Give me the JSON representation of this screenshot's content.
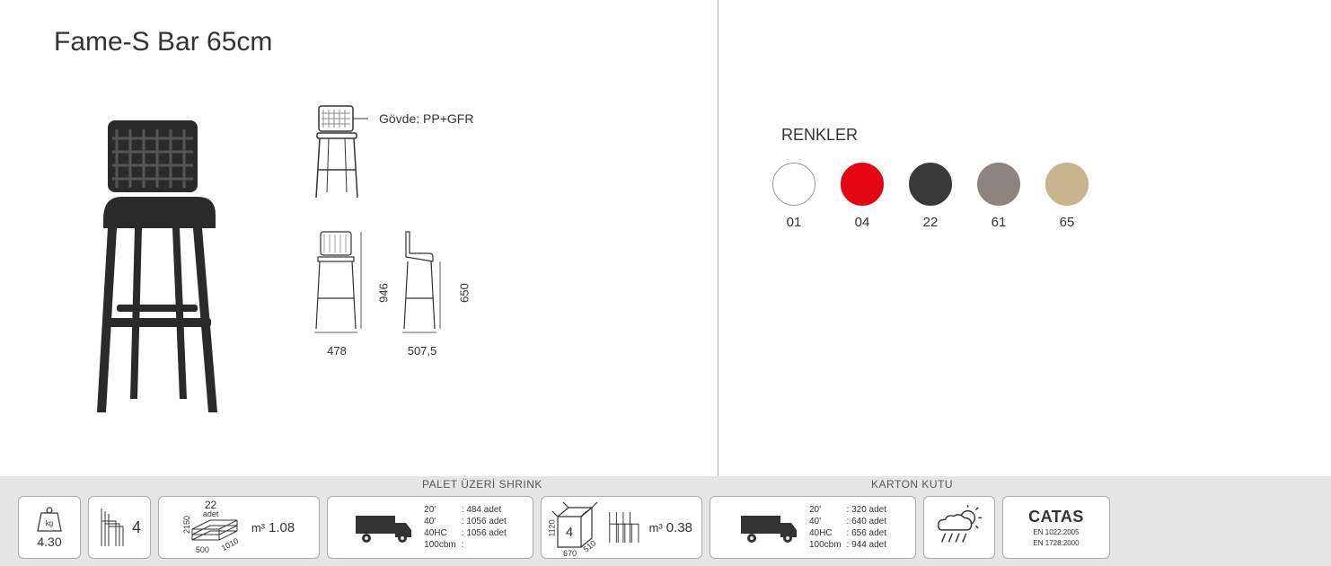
{
  "product": {
    "title": "Fame-S Bar 65cm",
    "material_label": "Gövde: PP+GFR",
    "product_color": "#2a2a2a"
  },
  "dimensions": {
    "front": {
      "width": "478",
      "height": "946"
    },
    "side": {
      "width": "507,5",
      "height": "650"
    }
  },
  "colors": {
    "title": "RENKLER",
    "items": [
      {
        "code": "01",
        "hex": "#ffffff",
        "border": "#999999"
      },
      {
        "code": "04",
        "hex": "#e30613",
        "border": "#e30613"
      },
      {
        "code": "22",
        "hex": "#3a3a3a",
        "border": "#3a3a3a"
      },
      {
        "code": "61",
        "hex": "#8c847d",
        "border": "#8c847d"
      },
      {
        "code": "65",
        "hex": "#c7b48c",
        "border": "#c7b48c"
      }
    ]
  },
  "specs": {
    "weight": {
      "value": "4.30",
      "unit_icon": "kg"
    },
    "stack": {
      "qty": "4"
    },
    "pallet_section_title": "PALET ÜZERİ SHRINK",
    "pallet": {
      "qty": "22",
      "qty_unit": "adet",
      "dim_h": "2150",
      "dim_w": "500",
      "dim_l": "1010",
      "volume_label": "m³",
      "volume": "1.08"
    },
    "truck_pallet": {
      "rows": [
        {
          "k": "20'",
          "v": "484 adet"
        },
        {
          "k": "40'",
          "v": "1056 adet"
        },
        {
          "k": "40HC",
          "v": "1056 adet"
        },
        {
          "k": "100cbm",
          "v": ""
        }
      ]
    },
    "carton_section_title": "KARTON KUTU",
    "carton": {
      "qty": "4",
      "dim_h": "1120",
      "dim_w": "670",
      "dim_l": "510",
      "volume_label": "m³",
      "volume": "0.38"
    },
    "truck_carton": {
      "rows": [
        {
          "k": "20'",
          "v": "320 adet"
        },
        {
          "k": "40'",
          "v": "640 adet"
        },
        {
          "k": "40HC",
          "v": "656 adet"
        },
        {
          "k": "100cbm",
          "v": "944 adet"
        }
      ]
    },
    "cert": {
      "name": "CATAS",
      "line1": "EN 1022:2005",
      "line2": "EN 1728:2000"
    }
  },
  "style": {
    "bg": "#ffffff",
    "bottom_bg": "#e6e6e6",
    "box_border": "#aaaaaa",
    "text": "#333333"
  }
}
